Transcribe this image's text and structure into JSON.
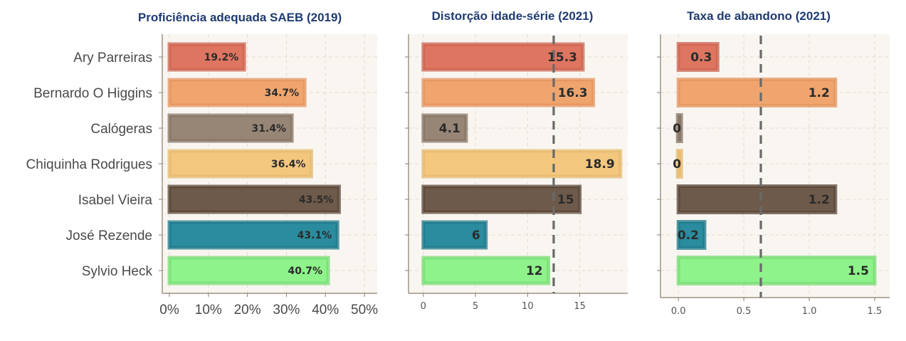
{
  "chart_data": [
    {
      "type": "bar",
      "orientation": "horizontal",
      "title": "Proficiência adequada SAEB (2019)",
      "categories": [
        "Ary Parreiras",
        "Bernardo O Higgins",
        "Calógeras",
        "Chiquinha Rodrigues",
        "Isabel Vieira",
        "José Rezende",
        "Sylvio Heck"
      ],
      "values": [
        19.2,
        34.7,
        31.4,
        36.4,
        43.5,
        43.1,
        40.7
      ],
      "value_labels": [
        "19.2%",
        "34.7%",
        "31.4%",
        "36.4%",
        "43.5%",
        "43.1%",
        "40.7%"
      ],
      "xlim": [
        0,
        52
      ],
      "xticks": [
        0,
        10,
        20,
        30,
        40,
        50
      ],
      "xtick_labels": [
        "0%",
        "10%",
        "20%",
        "30%",
        "40%",
        "50%"
      ],
      "grid": true
    },
    {
      "type": "bar",
      "orientation": "horizontal",
      "title": "Distorção idade-série (2021)",
      "categories": [
        "Ary Parreiras",
        "Bernardo O Higgins",
        "Calógeras",
        "Chiquinha Rodrigues",
        "Isabel Vieira",
        "José Rezende",
        "Sylvio Heck"
      ],
      "values": [
        15.3,
        16.3,
        4.1,
        18.9,
        15,
        6,
        12
      ],
      "value_labels": [
        "15.3",
        "16.3",
        "4.1",
        "18.9",
        "15",
        "6",
        "12"
      ],
      "xlim": [
        -0.6,
        19.6
      ],
      "xticks": [
        0,
        5,
        10,
        15
      ],
      "xtick_labels": [
        "0",
        "5",
        "10",
        "15"
      ],
      "reference_line": 12.5,
      "grid": true
    },
    {
      "type": "bar",
      "orientation": "horizontal",
      "title": "Taxa de abandono (2021)",
      "categories": [
        "Ary Parreiras",
        "Bernardo O Higgins",
        "Calógeras",
        "Chiquinha Rodrigues",
        "Isabel Vieira",
        "José Rezende",
        "Sylvio Heck"
      ],
      "values": [
        0.3,
        1.2,
        0,
        0,
        1.2,
        0.2,
        1.5
      ],
      "value_labels": [
        "0.3",
        "1.2",
        "0",
        "0",
        "1.2",
        "0.2",
        "1.5"
      ],
      "xlim": [
        -0.05,
        1.56
      ],
      "xticks": [
        0,
        0.5,
        1,
        1.5
      ],
      "xtick_labels": [
        "0.0",
        "0.5",
        "1.0",
        "1.5"
      ],
      "reference_line": 0.63,
      "grid": true
    }
  ],
  "colors": [
    "#de7560",
    "#f0a56e",
    "#978676",
    "#f3c77e",
    "#6e5a4a",
    "#2a8c9e",
    "#8ef38a"
  ],
  "edge_colors": [
    "#cc6450",
    "#e49660",
    "#857464",
    "#e6ba6e",
    "#5a4738",
    "#1f7a8a",
    "#78dc74"
  ]
}
